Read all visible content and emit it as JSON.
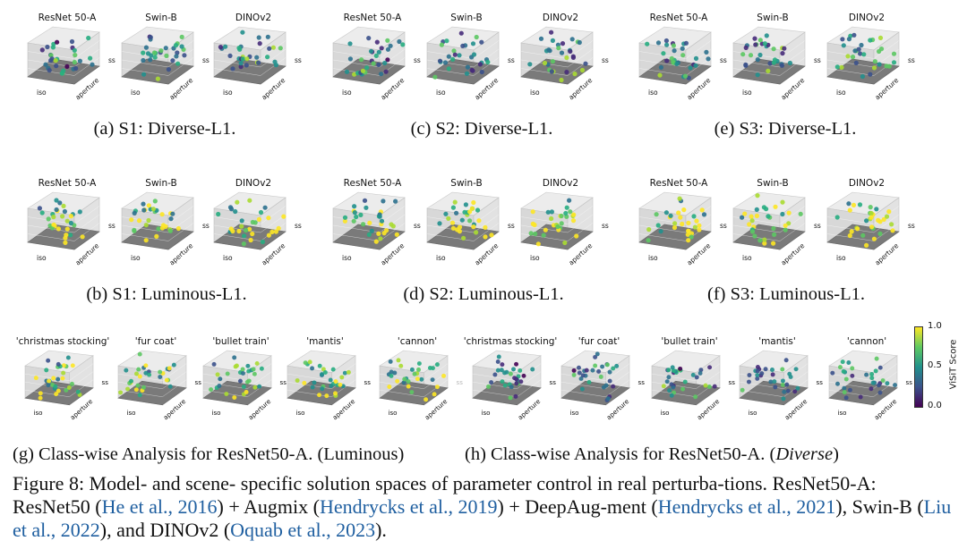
{
  "models": [
    "ResNet 50-A",
    "Swin-B",
    "DINOv2"
  ],
  "classes": [
    "'christmas stocking'",
    "'fur coat'",
    "'bullet train'",
    "'mantis'",
    "'cannon'"
  ],
  "axis_labels": {
    "x": "iso",
    "y": "aperture",
    "z": "ss"
  },
  "subcaptions": {
    "a": "(a) S1: Diverse-L1.",
    "b": "(b) S1: Luminous-L1.",
    "c": "(c) S2: Diverse-L1.",
    "d": "(d) S2: Luminous-L1.",
    "e": "(e) S3: Diverse-L1.",
    "f": "(f) S3: Luminous-L1.",
    "g": "(g) Class-wise Analysis for ResNet50-A. (Luminous)",
    "h_prefix": "(h) Class-wise Analysis for ResNet50-A. (",
    "h_italic": "Diverse",
    "h_suffix": ")"
  },
  "colorbar": {
    "label": "ViSiT Score",
    "ticks": [
      "1.0",
      "0.5",
      "0.0"
    ],
    "colors": [
      "#fde725",
      "#5ec962",
      "#21918c",
      "#3b528b",
      "#440154"
    ]
  },
  "caption": {
    "t1": "Figure 8:  Model- and scene- specific solution spaces of parameter control in real perturba-tions. ResNet50-A: ResNet50 (",
    "c1": "He et al., 2016",
    "t2": ") + Augmix (",
    "c2": "Hendrycks et al., 2019",
    "t3": ") + DeepAug-ment (",
    "c3": "Hendrycks et al., 2021",
    "t4": "), Swin-B (",
    "c4": "Liu et al., 2022",
    "t5": "), and DINOv2 (",
    "c5": "Oquab et al., 2023",
    "t6": ")."
  }
}
